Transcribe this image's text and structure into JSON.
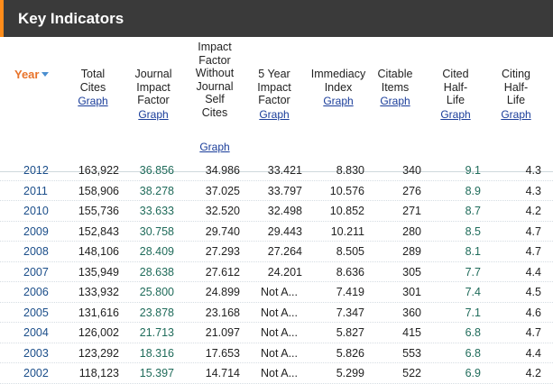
{
  "panel": {
    "title": "Key Indicators"
  },
  "columns": {
    "year": "Year",
    "total_cites": [
      "Total",
      "Cites"
    ],
    "jif": [
      "Journal",
      "Impact",
      "Factor"
    ],
    "jif_wo": [
      "Impact",
      "Factor",
      "Without",
      "Journal",
      "Self",
      "Cites"
    ],
    "five_year": [
      "5 Year",
      "Impact",
      "Factor"
    ],
    "immediacy": [
      "Immediacy",
      "Index"
    ],
    "citable": [
      "Citable",
      "Items"
    ],
    "cited_hl": [
      "Cited",
      "Half-",
      "Life"
    ],
    "citing_hl": [
      "Citing",
      "Half-",
      "Life"
    ],
    "graph_link": "Graph"
  },
  "rows": [
    {
      "year": "2012",
      "total_cites": "163,922",
      "jif": "36.856",
      "jif_wo": "34.986",
      "five_year": "33.421",
      "immediacy": "8.830",
      "citable": "340",
      "cited_hl": "9.1",
      "citing_hl": "4.3"
    },
    {
      "year": "2011",
      "total_cites": "158,906",
      "jif": "38.278",
      "jif_wo": "37.025",
      "five_year": "33.797",
      "immediacy": "10.576",
      "citable": "276",
      "cited_hl": "8.9",
      "citing_hl": "4.3"
    },
    {
      "year": "2010",
      "total_cites": "155,736",
      "jif": "33.633",
      "jif_wo": "32.520",
      "five_year": "32.498",
      "immediacy": "10.852",
      "citable": "271",
      "cited_hl": "8.7",
      "citing_hl": "4.2"
    },
    {
      "year": "2009",
      "total_cites": "152,843",
      "jif": "30.758",
      "jif_wo": "29.740",
      "five_year": "29.443",
      "immediacy": "10.211",
      "citable": "280",
      "cited_hl": "8.5",
      "citing_hl": "4.7"
    },
    {
      "year": "2008",
      "total_cites": "148,106",
      "jif": "28.409",
      "jif_wo": "27.293",
      "five_year": "27.264",
      "immediacy": "8.505",
      "citable": "289",
      "cited_hl": "8.1",
      "citing_hl": "4.7"
    },
    {
      "year": "2007",
      "total_cites": "135,949",
      "jif": "28.638",
      "jif_wo": "27.612",
      "five_year": "24.201",
      "immediacy": "8.636",
      "citable": "305",
      "cited_hl": "7.7",
      "citing_hl": "4.4"
    },
    {
      "year": "2006",
      "total_cites": "133,932",
      "jif": "25.800",
      "jif_wo": "24.899",
      "five_year": "Not A...",
      "immediacy": "7.419",
      "citable": "301",
      "cited_hl": "7.4",
      "citing_hl": "4.5"
    },
    {
      "year": "2005",
      "total_cites": "131,616",
      "jif": "23.878",
      "jif_wo": "23.168",
      "five_year": "Not A...",
      "immediacy": "7.347",
      "citable": "360",
      "cited_hl": "7.1",
      "citing_hl": "4.6"
    },
    {
      "year": "2004",
      "total_cites": "126,002",
      "jif": "21.713",
      "jif_wo": "21.097",
      "five_year": "Not A...",
      "immediacy": "5.827",
      "citable": "415",
      "cited_hl": "6.8",
      "citing_hl": "4.7"
    },
    {
      "year": "2003",
      "total_cites": "123,292",
      "jif": "18.316",
      "jif_wo": "17.653",
      "five_year": "Not A...",
      "immediacy": "5.826",
      "citable": "553",
      "cited_hl": "6.8",
      "citing_hl": "4.4"
    },
    {
      "year": "2002",
      "total_cites": "118,123",
      "jif": "15.397",
      "jif_wo": "14.714",
      "five_year": "Not A...",
      "immediacy": "5.299",
      "citable": "522",
      "cited_hl": "6.9",
      "citing_hl": "4.2"
    }
  ]
}
